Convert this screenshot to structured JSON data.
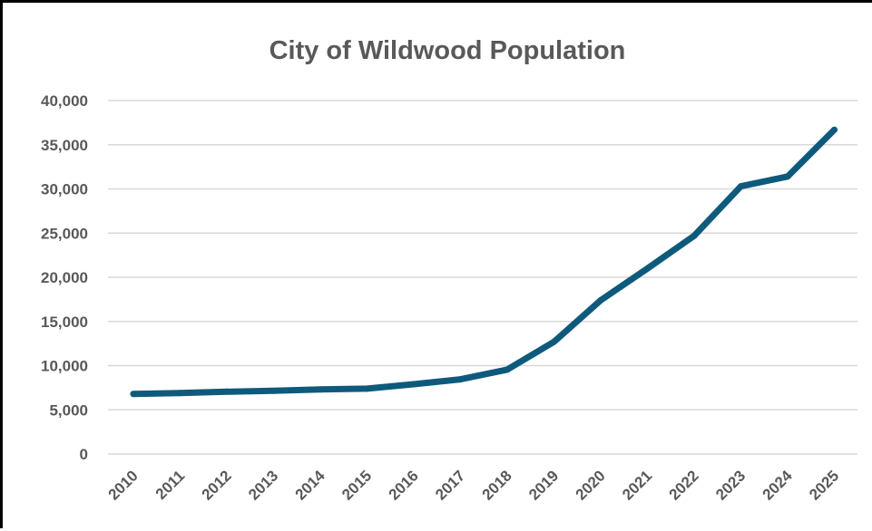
{
  "chart_data": {
    "type": "line",
    "title": "City of Wildwood Population",
    "xlabel": "",
    "ylabel": "",
    "categories": [
      "2010",
      "2011",
      "2012",
      "2013",
      "2014",
      "2015",
      "2016",
      "2017",
      "2018",
      "2019",
      "2020",
      "2021",
      "2022",
      "2023",
      "2024",
      "2025"
    ],
    "series": [
      {
        "values": [
          6800,
          6900,
          7050,
          7150,
          7300,
          7400,
          7900,
          8450,
          9550,
          12700,
          17400,
          21000,
          24700,
          30300,
          31400,
          36700
        ]
      }
    ],
    "ylim": [
      0,
      40000
    ],
    "yticks": [
      0,
      5000,
      10000,
      15000,
      20000,
      25000,
      30000,
      35000,
      40000
    ],
    "ytick_labels": [
      "0",
      "5,000",
      "10,000",
      "15,000",
      "20,000",
      "25,000",
      "30,000",
      "35,000",
      "40,000"
    ],
    "grid": "horizontal",
    "legend": "none",
    "line_color": "#0e5a7c",
    "grid_color": "#d9d9d9",
    "text_color": "#595959"
  }
}
